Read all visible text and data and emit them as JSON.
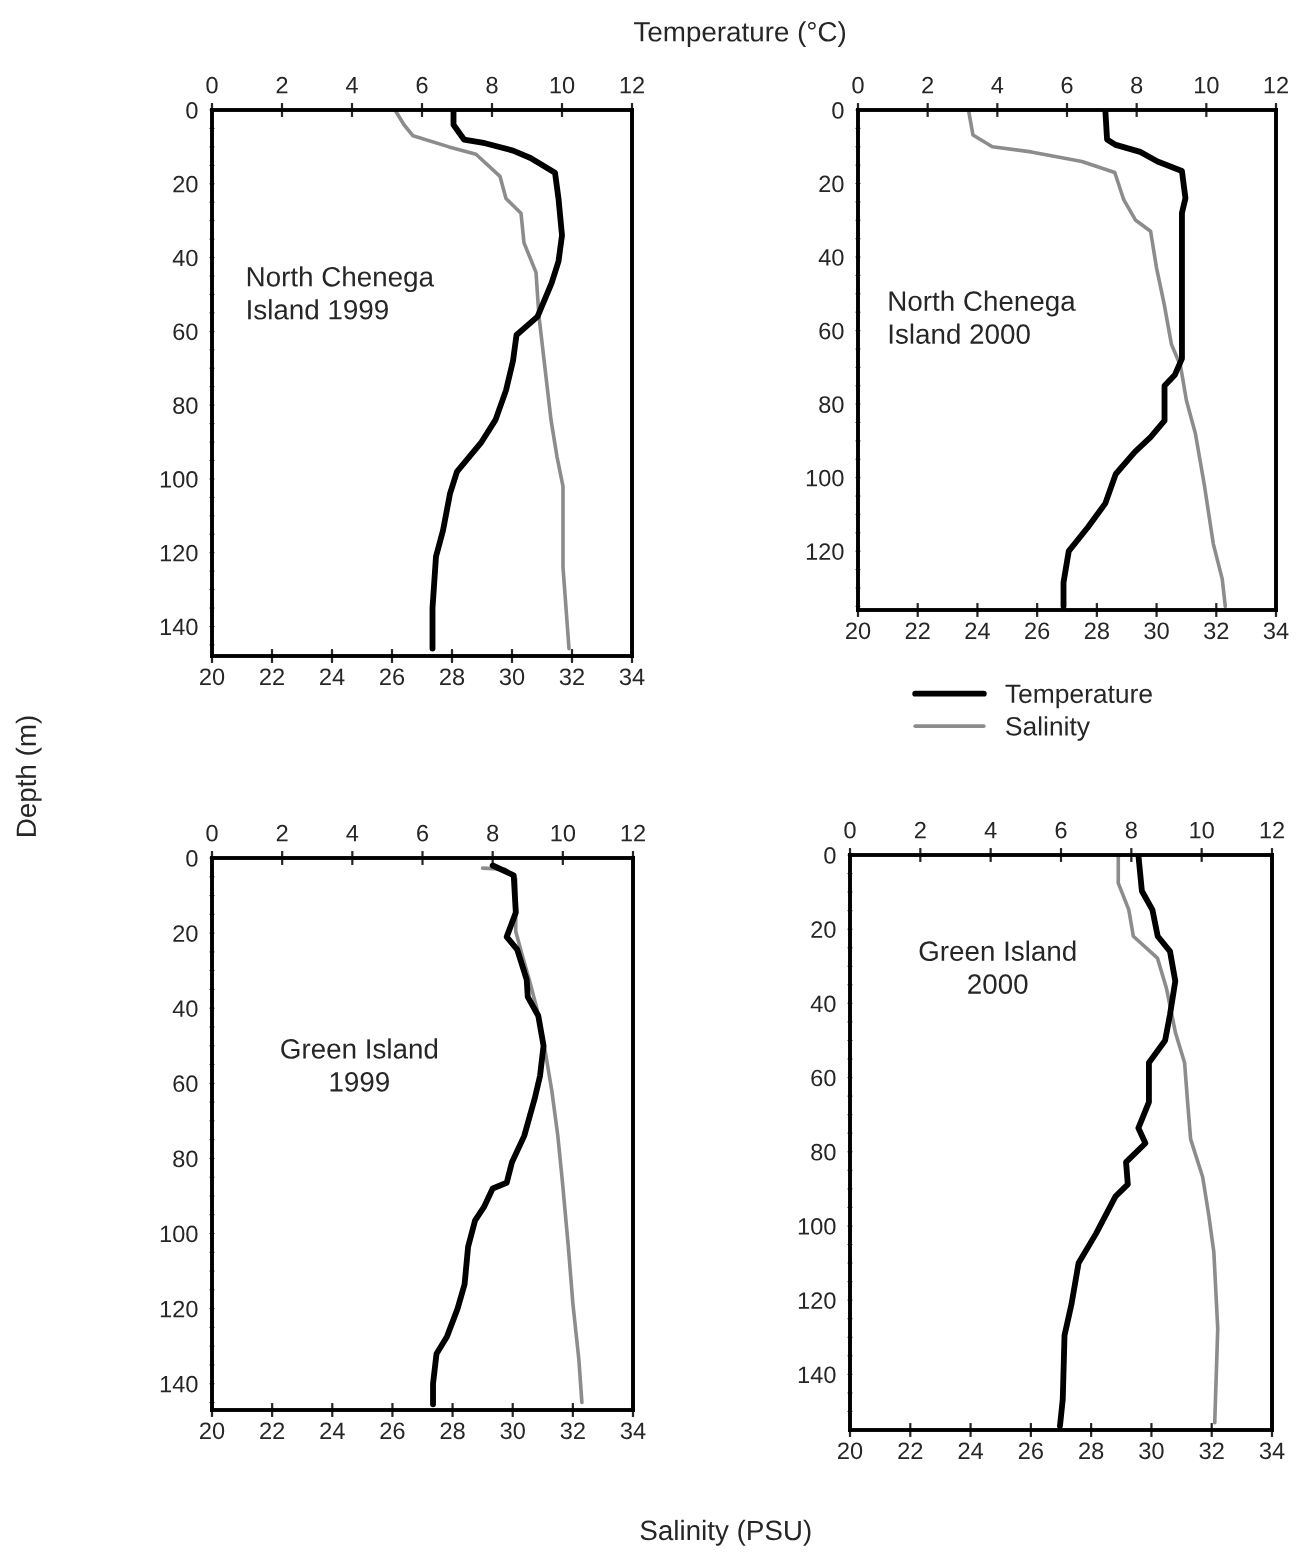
{
  "chart_data": [
    {
      "type": "line",
      "x2label": "Temperature (°C)",
      "ylabel": "Depth (m)",
      "annotations": [
        "North Chenega\nIsland 1999"
      ],
      "legend": false,
      "xlim": [
        20,
        34
      ],
      "xticks": [
        20,
        22,
        24,
        26,
        28,
        30,
        32,
        34
      ],
      "x2lim": [
        0,
        12
      ],
      "x2ticks": [
        0,
        2,
        4,
        6,
        8,
        10,
        12
      ],
      "ylim": [
        148,
        0
      ],
      "yticks": [
        0,
        {
          "value": 5,
          "label": null
        },
        {
          "value": 10,
          "label": null
        },
        {
          "value": 15,
          "label": null
        },
        20,
        {
          "value": 25,
          "label": null
        },
        {
          "value": 30,
          "label": null
        },
        {
          "value": 35,
          "label": null
        },
        40,
        {
          "value": 45,
          "label": null
        },
        {
          "value": 50,
          "label": null
        },
        {
          "value": 55,
          "label": null
        },
        60,
        {
          "value": 65,
          "label": null
        },
        {
          "value": 70,
          "label": null
        },
        {
          "value": 75,
          "label": null
        },
        80,
        {
          "value": 85,
          "label": null
        },
        {
          "value": 90,
          "label": null
        },
        {
          "value": 95,
          "label": null
        },
        100,
        {
          "value": 105,
          "label": null
        },
        {
          "value": 110,
          "label": null
        },
        {
          "value": 115,
          "label": null
        },
        120,
        {
          "value": 125,
          "label": null
        },
        {
          "value": 130,
          "label": null
        },
        {
          "value": 135,
          "label": null
        },
        140,
        {
          "value": 145,
          "label": null
        }
      ],
      "series": [
        {
          "color": "#000000",
          "axis": "x2",
          "x": [
            6.9,
            6.9,
            7.2,
            7.8,
            8.6,
            9.1,
            9.8,
            9.9,
            10.0,
            9.9,
            9.7,
            9.3,
            8.7,
            8.6,
            8.4,
            8.1,
            7.7,
            7.0,
            6.8,
            6.6,
            6.4,
            6.3,
            6.3
          ],
          "values": [
            0,
            4,
            8,
            9,
            11,
            13,
            17,
            24,
            34,
            41,
            47,
            56,
            61,
            68,
            76,
            84,
            90,
            98,
            104,
            114,
            121,
            135,
            146
          ]
        },
        {
          "color": "#8c8c8c",
          "x": [
            26.1,
            26.4,
            26.7,
            27.9,
            28.8,
            29.6,
            29.8,
            30.3,
            30.4,
            30.8,
            30.9,
            31.1,
            31.3,
            31.5,
            31.7,
            31.7,
            31.9
          ],
          "values": [
            0,
            4,
            7,
            10,
            12,
            18,
            24,
            28,
            36,
            44,
            56,
            70,
            84,
            94,
            102,
            124,
            146
          ]
        }
      ]
    },
    {
      "type": "line",
      "annotations": [
        "North Chenega\nIsland 2000"
      ],
      "legend": "bottom",
      "xlim": [
        20,
        34
      ],
      "xticks": [
        20,
        22,
        24,
        26,
        28,
        30,
        32,
        34
      ],
      "x2lim": [
        0,
        12
      ],
      "x2ticks": [
        0,
        2,
        4,
        6,
        8,
        10,
        12
      ],
      "ylim": [
        136,
        0
      ],
      "yticks": [
        0,
        {
          "value": 5,
          "label": null
        },
        {
          "value": 10,
          "label": null
        },
        {
          "value": 15,
          "label": null
        },
        20,
        {
          "value": 25,
          "label": null
        },
        {
          "value": 30,
          "label": null
        },
        {
          "value": 35,
          "label": null
        },
        40,
        {
          "value": 45,
          "label": null
        },
        {
          "value": 50,
          "label": null
        },
        {
          "value": 55,
          "label": null
        },
        60,
        {
          "value": 65,
          "label": null
        },
        {
          "value": 70,
          "label": null
        },
        {
          "value": 75,
          "label": null
        },
        80,
        {
          "value": 85,
          "label": null
        },
        {
          "value": 90,
          "label": null
        },
        {
          "value": 95,
          "label": null
        },
        100,
        {
          "value": 105,
          "label": null
        },
        {
          "value": 110,
          "label": null
        },
        {
          "value": 115,
          "label": null
        },
        120,
        {
          "value": 125,
          "label": null
        },
        {
          "value": 130,
          "label": null
        },
        {
          "value": 135,
          "label": null
        }
      ],
      "series": [
        {
          "name": "Temperature",
          "color": "#000000",
          "axis": "x2",
          "x": [
            7.1,
            7.15,
            7.4,
            8.1,
            8.6,
            9.3,
            9.4,
            9.3,
            9.3,
            9.3,
            9.1,
            8.8,
            8.8,
            8.4,
            7.95,
            7.4,
            7.1,
            6.6,
            6.05,
            5.9,
            5.9
          ],
          "values": [
            0,
            8,
            9.5,
            11.4,
            14,
            16.6,
            24,
            28,
            51,
            67.6,
            72,
            75,
            84.5,
            89,
            93,
            99,
            107,
            113.5,
            120,
            128.5,
            135
          ]
        },
        {
          "name": "Salinity",
          "color": "#8c8c8c",
          "x": [
            23.7,
            23.85,
            24.5,
            25.8,
            27.5,
            28.6,
            28.9,
            29.3,
            29.8,
            30.0,
            30.25,
            30.5,
            30.8,
            31.0,
            31.3,
            31.6,
            31.9,
            32.2,
            32.3
          ],
          "values": [
            0,
            6.8,
            10,
            11.4,
            14,
            17,
            24.4,
            30,
            33,
            43,
            52.6,
            63.8,
            69.5,
            79,
            88,
            102,
            118,
            127.6,
            135
          ]
        }
      ]
    },
    {
      "type": "line",
      "xlabel": "Salinity (PSU)",
      "annotations": [
        "Green Island\n1999"
      ],
      "legend": false,
      "xlim": [
        20,
        34
      ],
      "xticks": [
        20,
        22,
        24,
        26,
        28,
        30,
        32,
        34
      ],
      "x2lim": [
        0,
        12
      ],
      "x2ticks": [
        0,
        2,
        4,
        6,
        8,
        10,
        12
      ],
      "ylim": [
        147,
        0
      ],
      "yticks": [
        0,
        {
          "value": 5,
          "label": null
        },
        {
          "value": 10,
          "label": null
        },
        {
          "value": 15,
          "label": null
        },
        20,
        {
          "value": 25,
          "label": null
        },
        {
          "value": 30,
          "label": null
        },
        {
          "value": 35,
          "label": null
        },
        40,
        {
          "value": 45,
          "label": null
        },
        {
          "value": 50,
          "label": null
        },
        {
          "value": 55,
          "label": null
        },
        60,
        {
          "value": 65,
          "label": null
        },
        {
          "value": 70,
          "label": null
        },
        {
          "value": 75,
          "label": null
        },
        80,
        {
          "value": 85,
          "label": null
        },
        {
          "value": 90,
          "label": null
        },
        {
          "value": 95,
          "label": null
        },
        100,
        {
          "value": 105,
          "label": null
        },
        {
          "value": 110,
          "label": null
        },
        {
          "value": 115,
          "label": null
        },
        120,
        {
          "value": 125,
          "label": null
        },
        {
          "value": 130,
          "label": null
        },
        {
          "value": 135,
          "label": null
        },
        140,
        {
          "value": 145,
          "label": null
        }
      ],
      "series": [
        {
          "color": "#000000",
          "axis": "x2",
          "x": [
            8.0,
            8.6,
            8.66,
            8.4,
            8.7,
            8.97,
            9.0,
            9.3,
            9.45,
            9.35,
            9.2,
            8.9,
            8.55,
            8.4,
            8.0,
            7.75,
            7.5,
            7.3,
            7.2,
            7.0,
            6.7,
            6.4,
            6.3,
            6.3
          ],
          "values": [
            2,
            4.6,
            14.5,
            21,
            24.4,
            32.4,
            37,
            42,
            50,
            58,
            64,
            74,
            81,
            86.5,
            88,
            93,
            96.5,
            103.5,
            113.5,
            120,
            127.4,
            132,
            140,
            145.5
          ]
        },
        {
          "color": "#8c8c8c",
          "x": [
            29.0,
            29.75,
            30.1,
            30.1,
            30.3,
            30.55,
            30.8,
            31.05,
            31.3,
            31.5,
            31.65,
            31.85,
            32.0,
            32.2,
            32.3
          ],
          "values": [
            2.7,
            3,
            5.6,
            19.5,
            25.4,
            32.4,
            40,
            50,
            62,
            74,
            86,
            103.6,
            118.6,
            133.6,
            145
          ]
        }
      ]
    },
    {
      "type": "line",
      "annotations": [
        "Green Island\n2000"
      ],
      "legend": false,
      "xlim": [
        20,
        34
      ],
      "xticks": [
        20,
        22,
        24,
        26,
        28,
        30,
        32,
        34
      ],
      "x2lim": [
        0,
        12
      ],
      "x2ticks": [
        0,
        2,
        4,
        6,
        8,
        10,
        12
      ],
      "ylim": [
        155,
        0
      ],
      "yticks": [
        0,
        {
          "value": 5,
          "label": null
        },
        {
          "value": 10,
          "label": null
        },
        {
          "value": 15,
          "label": null
        },
        20,
        {
          "value": 25,
          "label": null
        },
        {
          "value": 30,
          "label": null
        },
        {
          "value": 35,
          "label": null
        },
        40,
        {
          "value": 45,
          "label": null
        },
        {
          "value": 50,
          "label": null
        },
        {
          "value": 55,
          "label": null
        },
        60,
        {
          "value": 65,
          "label": null
        },
        {
          "value": 70,
          "label": null
        },
        {
          "value": 75,
          "label": null
        },
        80,
        {
          "value": 85,
          "label": null
        },
        {
          "value": 90,
          "label": null
        },
        {
          "value": 95,
          "label": null
        },
        100,
        {
          "value": 105,
          "label": null
        },
        {
          "value": 110,
          "label": null
        },
        {
          "value": 115,
          "label": null
        },
        120,
        {
          "value": 125,
          "label": null
        },
        {
          "value": 130,
          "label": null
        },
        {
          "value": 135,
          "label": null
        },
        140,
        {
          "value": 145,
          "label": null
        },
        {
          "value": 150,
          "label": null
        }
      ],
      "series": [
        {
          "color": "#000000",
          "axis": "x2",
          "x": [
            8.2,
            8.3,
            8.6,
            8.75,
            9.1,
            9.25,
            9.1,
            8.96,
            8.5,
            8.5,
            8.2,
            8.4,
            7.85,
            7.9,
            7.55,
            7.0,
            6.5,
            6.3,
            6.1,
            6.05,
            5.97
          ],
          "values": [
            0,
            9.7,
            14.8,
            21.9,
            26,
            34,
            43,
            50,
            56,
            66.6,
            73.6,
            77.7,
            82.8,
            88.8,
            92,
            102,
            110,
            121,
            129.5,
            146.7,
            154
          ]
        },
        {
          "color": "#8c8c8c",
          "x": [
            28.9,
            28.9,
            29.25,
            29.4,
            30.2,
            30.5,
            30.8,
            31.1,
            31.2,
            31.3,
            31.7,
            31.9,
            32.07,
            32.2,
            32.1
          ],
          "values": [
            0,
            7.6,
            14.8,
            21.9,
            27.8,
            36,
            48,
            56,
            66.6,
            76.6,
            86.8,
            97,
            107,
            127.6,
            153
          ]
        }
      ]
    }
  ]
}
